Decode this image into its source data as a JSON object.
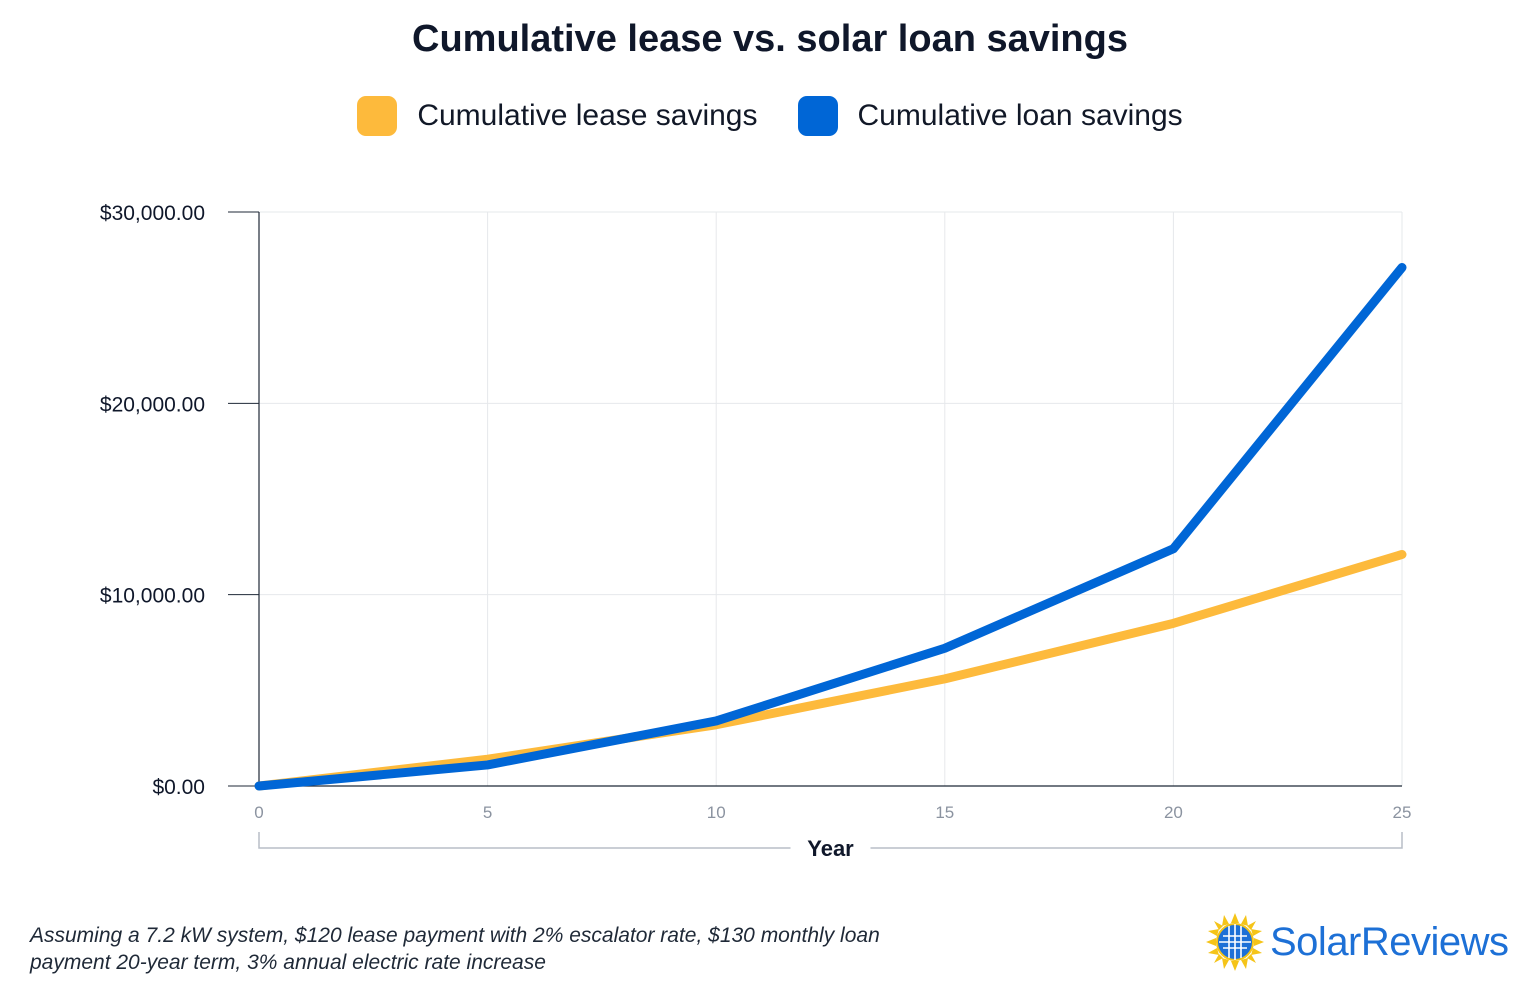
{
  "title": "Cumulative lease vs. solar loan savings",
  "legend": [
    {
      "label": "Cumulative lease savings",
      "color": "#FDBA3C"
    },
    {
      "label": "Cumulative loan savings",
      "color": "#0066D6"
    }
  ],
  "chart_data": {
    "type": "line",
    "title": "Cumulative lease vs. solar loan savings",
    "xlabel": "Year",
    "ylabel": "",
    "x": [
      0,
      5,
      10,
      15,
      20,
      25
    ],
    "xlim": [
      0,
      25
    ],
    "ylim": [
      0,
      30000
    ],
    "x_ticks": [
      "0",
      "5",
      "10",
      "15",
      "20",
      "25"
    ],
    "y_ticks": [
      {
        "value": 0,
        "label": "$0.00"
      },
      {
        "value": 10000,
        "label": "$10,000.00"
      },
      {
        "value": 20000,
        "label": "$20,000.00"
      },
      {
        "value": 30000,
        "label": "$30,000.00"
      }
    ],
    "grid": true,
    "legend_position": "top-center",
    "series": [
      {
        "name": "Cumulative lease savings",
        "color": "#FDBA3C",
        "values": [
          0,
          1400,
          3200,
          5600,
          8500,
          12100
        ]
      },
      {
        "name": "Cumulative loan savings",
        "color": "#0066D6",
        "values": [
          0,
          1100,
          3400,
          7200,
          12400,
          27100
        ]
      }
    ]
  },
  "footnote": {
    "line1": "Assuming a 7.2 kW system, $120 lease payment with 2% escalator rate, $130 monthly loan",
    "line2": "payment 20-year term, 3% annual electric rate increase"
  },
  "brand": {
    "name": "SolarReviews",
    "logo_icon": "solar-panel-sun-icon"
  }
}
